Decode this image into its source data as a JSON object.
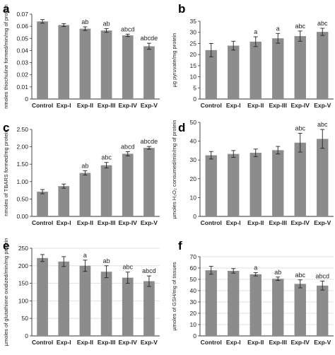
{
  "figure": {
    "bar_color": "#8c8c8c",
    "axis_color": "#333333",
    "text_color": "#222222"
  },
  "chart_data": [
    {
      "panel": "a",
      "type": "bar",
      "ylabel": "nmoles thiochuline formed/min/mg of protein",
      "categories": [
        "Control",
        "Exp-I",
        "Exp-II",
        "Exp-III",
        "Exp-IV",
        "Exp-V"
      ],
      "values": [
        0.064,
        0.061,
        0.058,
        0.0565,
        0.0525,
        0.0435
      ],
      "errors": [
        0.0015,
        0.0012,
        0.0015,
        0.0015,
        0.001,
        0.0025
      ],
      "annotations": [
        "",
        "",
        "ab",
        "ab",
        "abcd",
        "abcde"
      ],
      "ylim": [
        0,
        0.07
      ],
      "yticks": [
        0,
        0.01,
        0.02,
        0.03,
        0.04,
        0.05,
        0.06,
        0.07
      ],
      "ytick_labels": [
        "0",
        "0.01",
        "0.02",
        "0.03",
        "0.04",
        "0.05",
        "0.06",
        "0.07"
      ],
      "grid": false
    },
    {
      "panel": "b",
      "type": "bar",
      "ylabel": "µg pyruvate/mg protein",
      "categories": [
        "Control",
        "Exp-I",
        "Exp-II",
        "Exp-III",
        "Exp-IV",
        "Exp-V"
      ],
      "values": [
        22,
        24,
        25.8,
        27.3,
        28.3,
        30.2
      ],
      "errors": [
        3,
        2,
        2.2,
        2.2,
        2.3,
        1.6
      ],
      "annotations": [
        "",
        "",
        "a",
        "a",
        "abc",
        "abc"
      ],
      "ylim": [
        0,
        35
      ],
      "yticks": [
        0,
        5,
        10,
        15,
        20,
        25,
        30,
        35
      ],
      "ytick_labels": [
        "0",
        "5",
        "10",
        "15",
        "20",
        "25",
        "30",
        "35"
      ],
      "grid": false
    },
    {
      "panel": "c",
      "type": "bar",
      "ylabel": "nmoles of TBARS formed/mg protein",
      "categories": [
        "Control",
        "Exp-I",
        "Exp-II",
        "Exp-III",
        "Exp-IV",
        "Exp-V"
      ],
      "values": [
        0.71,
        0.87,
        1.25,
        1.47,
        1.8,
        1.97
      ],
      "errors": [
        0.06,
        0.06,
        0.06,
        0.08,
        0.06,
        0.04
      ],
      "annotations": [
        "",
        "",
        "ab",
        "abc",
        "abcd",
        "abcde"
      ],
      "ylim": [
        0,
        2.5
      ],
      "yticks": [
        0,
        0.5,
        1,
        1.5,
        2,
        2.5
      ],
      "ytick_labels": [
        "0.00",
        "0.50",
        "1.00",
        "1.50",
        "2.00",
        "2.50"
      ],
      "grid": false
    },
    {
      "panel": "d",
      "type": "bar",
      "ylabel": "µmoles H₂O₂ consumed/min/mg of protein",
      "categories": [
        "Control",
        "Exp-I",
        "Exp-II",
        "Exp-III",
        "Exp-IV",
        "Exp-V"
      ],
      "values": [
        32.5,
        33.2,
        33.8,
        35.2,
        39.2,
        41.2
      ],
      "errors": [
        2,
        1.8,
        2,
        2,
        5,
        5
      ],
      "annotations": [
        "",
        "",
        "",
        "",
        "abc",
        "abc"
      ],
      "ylim": [
        0,
        50
      ],
      "yticks": [
        0,
        10,
        20,
        30,
        40,
        50
      ],
      "ytick_labels": [
        "0",
        "10",
        "20",
        "30",
        "40",
        "50"
      ],
      "grid": false
    },
    {
      "panel": "e",
      "type": "bar",
      "ylabel": "µmoles of glutathione oxidized/min/mg protein",
      "categories": [
        "Control",
        "Exp-I",
        "Exp-II",
        "Exp-III",
        "Exp-IV",
        "Exp-V"
      ],
      "values": [
        222,
        212,
        200,
        183,
        166,
        156
      ],
      "errors": [
        10,
        14,
        16,
        17,
        16,
        15
      ],
      "annotations": [
        "",
        "",
        "a",
        "ab",
        "abc",
        "abcd"
      ],
      "ylim": [
        0,
        250
      ],
      "yticks": [
        0,
        50,
        100,
        150,
        200,
        250
      ],
      "ytick_labels": [
        "0",
        "50",
        "100",
        "150",
        "200",
        "250"
      ],
      "grid": true
    },
    {
      "panel": "f",
      "type": "bar",
      "ylabel": "µmoles of GSH/mg of tissues",
      "categories": [
        "Control",
        "Exp-I",
        "Exp-II",
        "Exp-III",
        "Exp-IV",
        "Exp-V"
      ],
      "values": [
        58,
        57.5,
        54.5,
        50.5,
        46,
        44.5
      ],
      "errors": [
        3.5,
        2,
        1.5,
        1.5,
        3.5,
        4
      ],
      "annotations": [
        "",
        "",
        "a",
        "ab",
        "abc",
        "abcd"
      ],
      "ylim": [
        0,
        70
      ],
      "yticks": [
        0,
        10,
        20,
        30,
        40,
        50,
        60,
        70
      ],
      "ytick_labels": [
        "0",
        "10",
        "20",
        "30",
        "40",
        "50",
        "60",
        "70"
      ],
      "grid": true
    }
  ]
}
